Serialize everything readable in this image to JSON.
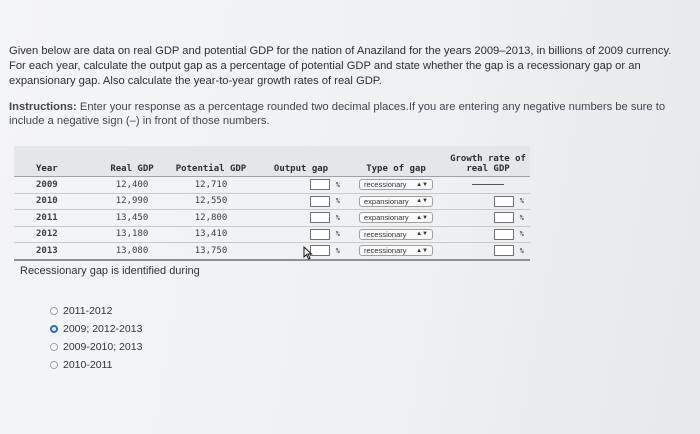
{
  "problem_text": "Given below are data on real GDP and potential GDP for the nation of Anaziland for the years 2009–2013, in billions of 2009 currency. For each year, calculate the output gap as a percentage of potential GDP and state whether the gap is a recessionary gap or an expansionary gap. Also calculate the year-to-year growth rates of real GDP.",
  "instructions": {
    "label": "Instructions:",
    "text": " Enter your response as a percentage rounded two decimal places.If you are entering any negative numbers be sure to include a negative sign (–) in front of those numbers."
  },
  "table": {
    "headers": {
      "year": "Year",
      "real": "Real GDP",
      "potential": "Potential GDP",
      "gap": "Output gap",
      "type": "Type of gap",
      "growth": "Growth rate of real GDP"
    },
    "rows": [
      {
        "year": "2009",
        "real": "12,400",
        "potential": "12,710",
        "type": "recessionary"
      },
      {
        "year": "2010",
        "real": "12,990",
        "potential": "12,550",
        "type": "expansionary"
      },
      {
        "year": "2011",
        "real": "13,450",
        "potential": "12,800",
        "type": "expansionary"
      },
      {
        "year": "2012",
        "real": "13,180",
        "potential": "13,410",
        "type": "recessionary"
      },
      {
        "year": "2013",
        "real": "13,080",
        "potential": "13,750",
        "type": "recessionary"
      }
    ],
    "percent_sign": "%"
  },
  "question": "Recessionary gap is identified during",
  "options": [
    {
      "label": "2011-2012",
      "selected": false
    },
    {
      "label": "2009; 2012-2013",
      "selected": true
    },
    {
      "label": "2009-2010; 2013",
      "selected": false
    },
    {
      "label": "2010-2011",
      "selected": false
    }
  ],
  "accent_color": "#2a6fc4"
}
